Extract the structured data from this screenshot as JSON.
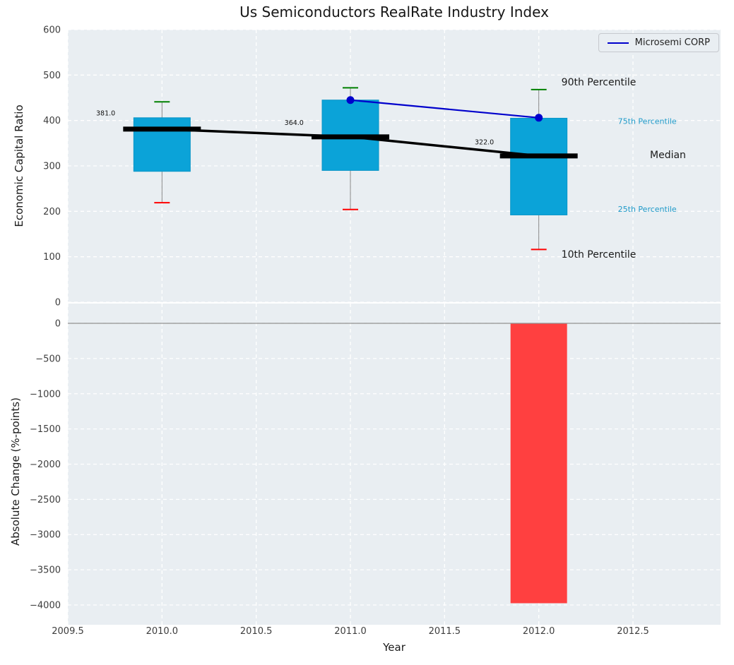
{
  "legend": {
    "label": "Microsemi CORP"
  },
  "colors": {
    "figure_bg": "#ffffff",
    "plot_bg": "#e9eef2",
    "grid": "#ffffff",
    "box_fill": "#0ba3d8",
    "box_edge": "#0995c7",
    "whisker": "#888888",
    "cap_90th": "#008000",
    "cap_10th": "#ff0000",
    "median_line": "#000000",
    "series_line": "#0000cc",
    "bar_negative": "#ff4040",
    "zero_line": "#909090",
    "tick_text": "#3d3d3d",
    "label_text": "#1a1a1a",
    "percentile_blue": "#1f9ac9"
  },
  "chart_data": [
    {
      "type": "box",
      "title": "Us Semiconductors RealRate Industry Index",
      "ylabel": "Economic Capital Ratio",
      "ylim": [
        0,
        600
      ],
      "xlim": [
        2009.5,
        2012.965
      ],
      "grid": true,
      "legend_position": "upper right",
      "yticks": [
        {
          "value": 0,
          "label": "0"
        },
        {
          "value": 100,
          "label": "100"
        },
        {
          "value": 200,
          "label": "200"
        },
        {
          "value": 300,
          "label": "300"
        },
        {
          "value": 400,
          "label": "400"
        },
        {
          "value": 500,
          "label": "500"
        },
        {
          "value": 600,
          "label": "600"
        }
      ],
      "boxes": [
        {
          "year": 2010,
          "p10": 219,
          "p25": 288,
          "median": 381,
          "p75": 406,
          "p90": 441
        },
        {
          "year": 2011,
          "p10": 204,
          "p25": 290,
          "median": 364,
          "p75": 445,
          "p90": 472
        },
        {
          "year": 2012,
          "p10": 116,
          "p25": 192,
          "median": 322,
          "p75": 405,
          "p90": 468
        }
      ],
      "median_value_labels": [
        {
          "text": "381.0",
          "x": 2009.65,
          "y": 416
        },
        {
          "text": "364.0",
          "x": 2010.65,
          "y": 395
        },
        {
          "text": "322.0",
          "x": 2011.66,
          "y": 352
        }
      ],
      "series": [
        {
          "name": "Microsemi CORP",
          "x": [
            2011,
            2012
          ],
          "y": [
            445,
            406
          ]
        }
      ],
      "annotations": [
        {
          "text": "90th Percentile",
          "x": 2012.12,
          "y": 485,
          "color": "#1a1a1a",
          "size": 14
        },
        {
          "text": "75th Percentile",
          "x": 2012.42,
          "y": 400,
          "color": "#1f9ac9",
          "size": 11
        },
        {
          "text": "Median",
          "x": 2012.59,
          "y": 325,
          "color": "#1a1a1a",
          "size": 14
        },
        {
          "text": "25th Percentile",
          "x": 2012.42,
          "y": 207,
          "color": "#1f9ac9",
          "size": 11
        },
        {
          "text": "10th Percentile",
          "x": 2012.12,
          "y": 106,
          "color": "#1a1a1a",
          "size": 14
        }
      ]
    },
    {
      "type": "bar",
      "ylabel": "Absolute Change (%-points)",
      "xlabel": "Year",
      "ylim": [
        -4281,
        281
      ],
      "grid": true,
      "yticks": [
        {
          "value": 0,
          "label": "0"
        },
        {
          "value": -500,
          "label": "−500"
        },
        {
          "value": -1000,
          "label": "−1000"
        },
        {
          "value": -1500,
          "label": "−1500"
        },
        {
          "value": -2000,
          "label": "−2000"
        },
        {
          "value": -2500,
          "label": "−2500"
        },
        {
          "value": -3000,
          "label": "−3000"
        },
        {
          "value": -3500,
          "label": "−3500"
        },
        {
          "value": -4000,
          "label": "−4000"
        }
      ],
      "xticks": [
        {
          "value": 2009.5,
          "label": "2009.5"
        },
        {
          "value": 2010.0,
          "label": "2010.0"
        },
        {
          "value": 2010.5,
          "label": "2010.5"
        },
        {
          "value": 2011.0,
          "label": "2011.0"
        },
        {
          "value": 2011.5,
          "label": "2011.5"
        },
        {
          "value": 2012.0,
          "label": "2012.0"
        },
        {
          "value": 2012.5,
          "label": "2012.5"
        }
      ],
      "bars": [
        {
          "year": 2012,
          "value": -3975
        }
      ]
    }
  ]
}
